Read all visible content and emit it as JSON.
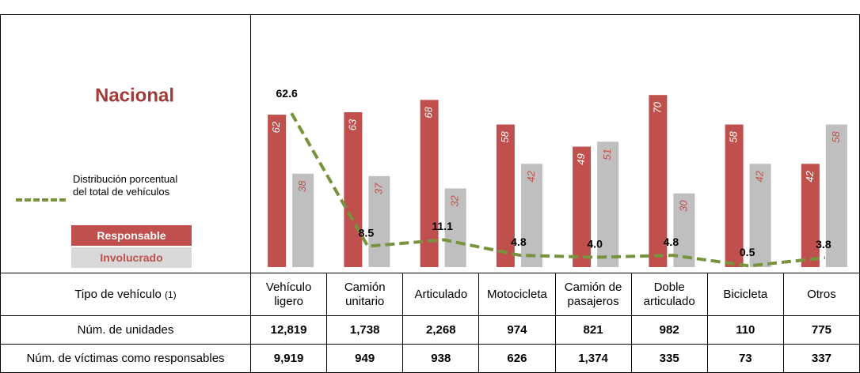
{
  "chart_data": {
    "type": "bar",
    "title": "Nacional",
    "categories": [
      "Vehículo ligero",
      "Camión unitario",
      "Articulado",
      "Motocicleta",
      "Camión de pasajeros",
      "Doble articulado",
      "Bicicleta",
      "Otros"
    ],
    "ylim": [
      0,
      72
    ],
    "series": [
      {
        "name": "Responsable",
        "color": "#c0504d",
        "values": [
          62,
          63,
          68,
          58,
          49,
          70,
          58,
          42
        ]
      },
      {
        "name": "Involucrado",
        "color": "#bfbfbf",
        "values": [
          38,
          37,
          32,
          42,
          51,
          30,
          42,
          58
        ]
      },
      {
        "name": "Distribución porcentual del total de vehículos",
        "type": "line",
        "style": "dashed",
        "color": "#77933c",
        "values": [
          62.6,
          8.5,
          11.1,
          4.8,
          4.0,
          4.8,
          0.5,
          3.8
        ],
        "value_labels": [
          "62.6",
          "8.5",
          "11.1",
          "4.8",
          "4.0",
          "4.8",
          "0.5",
          "3.8"
        ]
      }
    ]
  },
  "table": {
    "header_label": "Tipo de vehículo",
    "header_note": "(1)",
    "rows": [
      {
        "label": "Núm. de unidades",
        "values": [
          "12,819",
          "1,738",
          "2,268",
          "974",
          "821",
          "982",
          "110",
          "775"
        ]
      },
      {
        "label": "Núm. de víctimas como responsables",
        "values": [
          "9,919",
          "949",
          "938",
          "626",
          "1,374",
          "335",
          "73",
          "337"
        ]
      }
    ]
  }
}
